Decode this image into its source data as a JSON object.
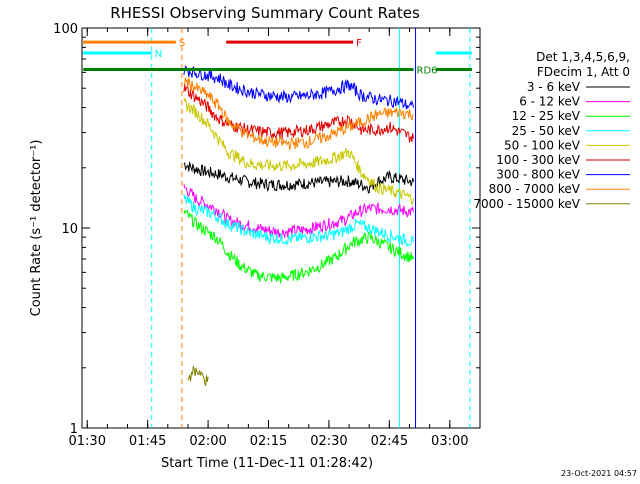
{
  "chart_data": {
    "type": "line",
    "title": "RHESSI Observing Summary Count Rates",
    "xlabel": "Start Time (11-Dec-11 01:28:42)",
    "ylabel": "Count Rate (s⁻¹ detector⁻¹)",
    "x_ticks": [
      "01:30",
      "01:45",
      "02:00",
      "02:15",
      "02:30",
      "02:45",
      "03:00"
    ],
    "y_ticks": [
      "1",
      "10",
      "100"
    ],
    "y_scale": "log",
    "xlim": [
      "01:28:42",
      "03:07:30"
    ],
    "ylim": [
      1,
      100
    ],
    "grid": false,
    "legend_position": "right",
    "legend_header": [
      "Det 1,3,4,5,6,9,",
      "FDecim 1, Att 0"
    ],
    "timestamp": "23-Oct-2021 04:57",
    "series": [
      {
        "name": "3 - 6 keV",
        "color": "#000000",
        "points": [
          [
            "01:54:00",
            21
          ],
          [
            "01:56:00",
            20
          ],
          [
            "02:00:00",
            19
          ],
          [
            "02:03:00",
            18.5
          ],
          [
            "02:05:00",
            18
          ],
          [
            "02:10:00",
            17
          ],
          [
            "02:15:00",
            16.5
          ],
          [
            "02:20:00",
            16.5
          ],
          [
            "02:25:00",
            16.8
          ],
          [
            "02:30:00",
            17
          ],
          [
            "02:35:00",
            17.2
          ],
          [
            "02:40:00",
            16
          ],
          [
            "02:42:00",
            17
          ],
          [
            "02:45:00",
            18
          ],
          [
            "02:48:00",
            17.5
          ],
          [
            "02:51:00",
            17
          ]
        ]
      },
      {
        "name": "6 - 12 keV",
        "color": "#ff00ff",
        "points": [
          [
            "01:54:00",
            16
          ],
          [
            "01:57:00",
            14
          ],
          [
            "02:00:00",
            13
          ],
          [
            "02:02:00",
            12.5
          ],
          [
            "02:05:00",
            11
          ],
          [
            "02:08:00",
            10.5
          ],
          [
            "02:12:00",
            10
          ],
          [
            "02:18:00",
            9.5
          ],
          [
            "02:24:00",
            9.8
          ],
          [
            "02:30:00",
            10.5
          ],
          [
            "02:34:00",
            11
          ],
          [
            "02:37:00",
            12
          ],
          [
            "02:40:00",
            12.5
          ],
          [
            "02:45:00",
            12.5
          ],
          [
            "02:51:00",
            12
          ]
        ]
      },
      {
        "name": "12 - 25 keV",
        "color": "#00ff00",
        "points": [
          [
            "01:54:00",
            12
          ],
          [
            "01:57:00",
            10.5
          ],
          [
            "02:00:00",
            9.5
          ],
          [
            "02:02:00",
            9
          ],
          [
            "02:05:00",
            7.5
          ],
          [
            "02:08:00",
            6.5
          ],
          [
            "02:12:00",
            5.8
          ],
          [
            "02:18:00",
            5.6
          ],
          [
            "02:24:00",
            6
          ],
          [
            "02:28:00",
            6.5
          ],
          [
            "02:32:00",
            7.2
          ],
          [
            "02:36:00",
            8.5
          ],
          [
            "02:40:00",
            9
          ],
          [
            "02:45:00",
            8
          ],
          [
            "02:51:00",
            7
          ]
        ]
      },
      {
        "name": "25 - 50 keV",
        "color": "#00ffff",
        "points": [
          [
            "01:54:00",
            14
          ],
          [
            "01:57:00",
            12.5
          ],
          [
            "02:00:00",
            12
          ],
          [
            "02:02:00",
            11.5
          ],
          [
            "02:05:00",
            10.5
          ],
          [
            "02:10:00",
            9.5
          ],
          [
            "02:15:00",
            9
          ],
          [
            "02:20:00",
            8.8
          ],
          [
            "02:25:00",
            9
          ],
          [
            "02:30:00",
            9.2
          ],
          [
            "02:33:00",
            9.5
          ],
          [
            "02:37:00",
            10.5
          ],
          [
            "02:40:00",
            10
          ],
          [
            "02:45:00",
            9.2
          ],
          [
            "02:51:00",
            8.5
          ]
        ]
      },
      {
        "name": "50 - 100 keV",
        "color": "#c8c800",
        "points": [
          [
            "01:54:00",
            42
          ],
          [
            "01:57:00",
            38
          ],
          [
            "02:00:00",
            33
          ],
          [
            "02:03:00",
            27
          ],
          [
            "02:05:00",
            24
          ],
          [
            "02:10:00",
            21
          ],
          [
            "02:15:00",
            20.5
          ],
          [
            "02:20:00",
            20.5
          ],
          [
            "02:25:00",
            21
          ],
          [
            "02:30:00",
            22
          ],
          [
            "02:35:00",
            24
          ],
          [
            "02:38:00",
            19
          ],
          [
            "02:42:00",
            16
          ],
          [
            "02:47:00",
            15
          ],
          [
            "02:51:00",
            14
          ]
        ]
      },
      {
        "name": "100 - 300 keV",
        "color": "#e00000",
        "points": [
          [
            "01:54:00",
            50
          ],
          [
            "01:57:00",
            45
          ],
          [
            "02:00:00",
            40
          ],
          [
            "02:02:00",
            36
          ],
          [
            "02:05:00",
            33
          ],
          [
            "02:10:00",
            31
          ],
          [
            "02:15:00",
            30
          ],
          [
            "02:20:00",
            30
          ],
          [
            "02:25:00",
            31
          ],
          [
            "02:30:00",
            33
          ],
          [
            "02:35:00",
            35
          ],
          [
            "02:38:00",
            31
          ],
          [
            "02:42:00",
            31
          ],
          [
            "02:45:00",
            32
          ],
          [
            "02:48:00",
            30
          ],
          [
            "02:51:00",
            28
          ]
        ]
      },
      {
        "name": "300 - 800 keV",
        "color": "#0000ff",
        "points": [
          [
            "01:54:00",
            62
          ],
          [
            "01:57:00",
            60
          ],
          [
            "02:00:00",
            58
          ],
          [
            "02:03:00",
            56
          ],
          [
            "02:05:00",
            52
          ],
          [
            "02:10:00",
            48
          ],
          [
            "02:15:00",
            46
          ],
          [
            "02:20:00",
            45
          ],
          [
            "02:25:00",
            46
          ],
          [
            "02:30:00",
            48
          ],
          [
            "02:35:00",
            52
          ],
          [
            "02:38:00",
            46
          ],
          [
            "02:42:00",
            44
          ],
          [
            "02:47:00",
            43
          ],
          [
            "02:51:00",
            40
          ]
        ]
      },
      {
        "name": "800 - 7000 keV",
        "color": "#ff8000",
        "points": [
          [
            "01:54:00",
            55
          ],
          [
            "01:57:00",
            50
          ],
          [
            "02:00:00",
            46
          ],
          [
            "02:03:00",
            40
          ],
          [
            "02:05:00",
            34
          ],
          [
            "02:10:00",
            29
          ],
          [
            "02:15:00",
            27
          ],
          [
            "02:20:00",
            26.5
          ],
          [
            "02:25:00",
            27
          ],
          [
            "02:30:00",
            29
          ],
          [
            "02:35:00",
            32
          ],
          [
            "02:38:00",
            34
          ],
          [
            "02:42:00",
            37
          ],
          [
            "02:47:00",
            38
          ],
          [
            "02:51:00",
            37
          ]
        ]
      },
      {
        "name": "7000 - 15000 keV",
        "color": "#808000",
        "points": [
          [
            "01:55:00",
            1.8
          ],
          [
            "01:55:40",
            1.7
          ],
          [
            "01:56:20",
            2
          ],
          [
            "01:57:00",
            1.9
          ],
          [
            "01:57:40",
            1.8
          ],
          [
            "01:58:20",
            1.9
          ],
          [
            "01:59:00",
            1.7
          ],
          [
            "02:00:00",
            1.8
          ]
        ]
      }
    ],
    "spike_series_index": 6,
    "annotations": [
      {
        "label": "S",
        "color": "#ff8000",
        "from": "01:29:00",
        "to": "01:52:00",
        "y": 85
      },
      {
        "label": "N",
        "color": "#00ffff",
        "from": "01:29:00",
        "to": "01:46:00",
        "y": 75
      },
      {
        "label": "F",
        "color": "#e00000",
        "from": "02:04:30",
        "to": "02:36:00",
        "y": 85
      },
      {
        "label": "RD6",
        "color": "#008000",
        "from": "01:29:00",
        "to": "02:51:00",
        "y": 62
      }
    ],
    "overlay_segments": [
      {
        "color": "#00ffff",
        "from": "02:56:30",
        "to": "03:05:30",
        "y": 75
      },
      {
        "color": "#008000",
        "from": "02:56:30",
        "to": "03:05:30",
        "y": 62
      }
    ],
    "vertical_lines": [
      {
        "time": "01:46:00",
        "color": "#00ffff",
        "dashed": true
      },
      {
        "time": "01:53:30",
        "color": "#ff8000",
        "dashed": true
      },
      {
        "time": "03:05:00",
        "color": "#00ffff",
        "dashed": true
      },
      {
        "time": "02:47:30",
        "color": "#00ffff",
        "dashed": false
      },
      {
        "time": "02:51:30",
        "color": "#0000ff",
        "dashed": false
      }
    ]
  }
}
